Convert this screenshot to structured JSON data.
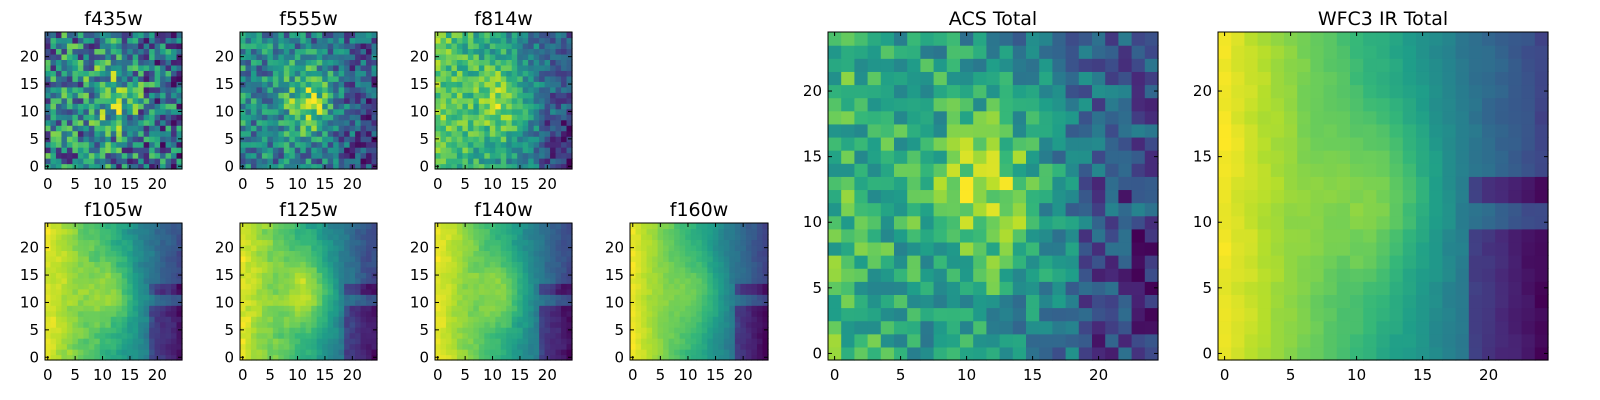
{
  "colormap": "viridis",
  "viridis_stops": [
    "#440154",
    "#482878",
    "#3e4989",
    "#31688e",
    "#26828e",
    "#1f9e89",
    "#35b779",
    "#6ece58",
    "#b5de2b",
    "#fde725"
  ],
  "chart_data": [
    {
      "type": "heatmap",
      "title": "f435w",
      "grid": [
        25,
        25
      ],
      "xlim": [
        0,
        24
      ],
      "ylim": [
        0,
        24
      ],
      "xticks": [
        "0",
        "5",
        "10",
        "15",
        "20"
      ],
      "yticks": [
        "0",
        "5",
        "10",
        "15",
        "20"
      ],
      "field": {
        "kind": "noisy",
        "gradient": 0.05,
        "blob_strength": 0.3,
        "noise": 0.45
      }
    },
    {
      "type": "heatmap",
      "title": "f555w",
      "grid": [
        25,
        25
      ],
      "xlim": [
        0,
        24
      ],
      "ylim": [
        0,
        24
      ],
      "xticks": [
        "0",
        "5",
        "10",
        "15",
        "20"
      ],
      "yticks": [
        "0",
        "5",
        "10",
        "15",
        "20"
      ],
      "field": {
        "kind": "noisy",
        "gradient": 0.15,
        "blob_strength": 0.6,
        "noise": 0.4
      }
    },
    {
      "type": "heatmap",
      "title": "f814w",
      "grid": [
        25,
        25
      ],
      "xlim": [
        0,
        24
      ],
      "ylim": [
        0,
        24
      ],
      "xticks": [
        "0",
        "5",
        "10",
        "15",
        "20"
      ],
      "yticks": [
        "0",
        "5",
        "10",
        "15",
        "20"
      ],
      "field": {
        "kind": "noisy",
        "gradient": 0.45,
        "blob_strength": 0.5,
        "noise": 0.3
      }
    },
    {
      "type": "heatmap",
      "title": "f105w",
      "grid": [
        25,
        25
      ],
      "xlim": [
        0,
        24
      ],
      "ylim": [
        0,
        24
      ],
      "xticks": [
        "0",
        "5",
        "10",
        "15",
        "20"
      ],
      "yticks": [
        "0",
        "5",
        "10",
        "15",
        "20"
      ],
      "field": {
        "kind": "smooth",
        "gradient": 0.7,
        "blob_strength": 0.35,
        "noise": 0.12
      }
    },
    {
      "type": "heatmap",
      "title": "f125w",
      "grid": [
        25,
        25
      ],
      "xlim": [
        0,
        24
      ],
      "ylim": [
        0,
        24
      ],
      "xticks": [
        "0",
        "5",
        "10",
        "15",
        "20"
      ],
      "yticks": [
        "0",
        "5",
        "10",
        "15",
        "20"
      ],
      "field": {
        "kind": "smooth",
        "gradient": 0.65,
        "blob_strength": 0.45,
        "noise": 0.12
      }
    },
    {
      "type": "heatmap",
      "title": "f140w",
      "grid": [
        25,
        25
      ],
      "xlim": [
        0,
        24
      ],
      "ylim": [
        0,
        24
      ],
      "xticks": [
        "0",
        "5",
        "10",
        "15",
        "20"
      ],
      "yticks": [
        "0",
        "5",
        "10",
        "15",
        "20"
      ],
      "field": {
        "kind": "smooth",
        "gradient": 0.75,
        "blob_strength": 0.35,
        "noise": 0.1
      }
    },
    {
      "type": "heatmap",
      "title": "f160w",
      "grid": [
        25,
        25
      ],
      "xlim": [
        0,
        24
      ],
      "ylim": [
        0,
        24
      ],
      "xticks": [
        "0",
        "5",
        "10",
        "15",
        "20"
      ],
      "yticks": [
        "0",
        "5",
        "10",
        "15",
        "20"
      ],
      "field": {
        "kind": "smooth",
        "gradient": 0.85,
        "blob_strength": 0.3,
        "noise": 0.08
      }
    },
    {
      "type": "heatmap",
      "title": "ACS Total",
      "grid": [
        25,
        25
      ],
      "xlim": [
        0,
        24
      ],
      "ylim": [
        0,
        24
      ],
      "xticks": [
        "0",
        "5",
        "10",
        "15",
        "20"
      ],
      "yticks": [
        "0",
        "5",
        "10",
        "15",
        "20"
      ],
      "field": {
        "kind": "noisy",
        "gradient": 0.35,
        "blob_strength": 0.55,
        "noise": 0.3
      }
    },
    {
      "type": "heatmap",
      "title": "WFC3 IR Total",
      "grid": [
        25,
        25
      ],
      "xlim": [
        0,
        24
      ],
      "ylim": [
        0,
        24
      ],
      "xticks": [
        "0",
        "5",
        "10",
        "15",
        "20"
      ],
      "yticks": [
        "0",
        "5",
        "10",
        "15",
        "20"
      ],
      "field": {
        "kind": "smooth",
        "gradient": 0.85,
        "blob_strength": 0.35,
        "noise": 0.06
      }
    }
  ]
}
